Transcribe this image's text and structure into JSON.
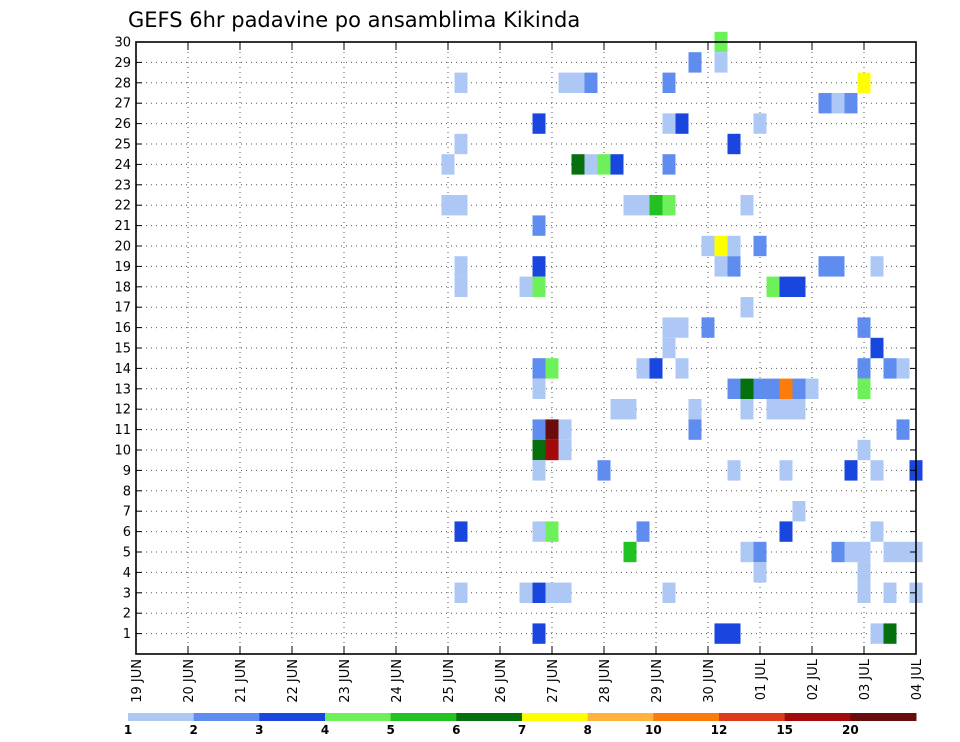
{
  "chart_data": {
    "type": "heatmap",
    "title": "GEFS 6hr padavine po ansamblima Kikinda",
    "x_tick_labels": [
      "19 JUN",
      "20 JUN",
      "21 JUN",
      "22 JUN",
      "23 JUN",
      "24 JUN",
      "25 JUN",
      "26 JUN",
      "27 JUN",
      "28 JUN",
      "29 JUN",
      "30 JUN",
      "01 JUL",
      "02 JUL",
      "03 JUL",
      "04 JUL"
    ],
    "y_tick_labels": [
      "1",
      "2",
      "3",
      "4",
      "5",
      "6",
      "7",
      "8",
      "9",
      "10",
      "11",
      "12",
      "13",
      "14",
      "15",
      "16",
      "17",
      "18",
      "19",
      "20",
      "21",
      "22",
      "23",
      "24",
      "25",
      "26",
      "27",
      "28",
      "29",
      "30"
    ],
    "xlim_days": [
      0,
      15
    ],
    "ylim_members": [
      0,
      30
    ],
    "grid": true,
    "colorbar": {
      "placement": "bottom",
      "labels": [
        "1",
        "2",
        "3",
        "4",
        "5",
        "6",
        "7",
        "8",
        "10",
        "12",
        "15",
        "20"
      ],
      "colors": [
        "#aec8f5",
        "#5f8cef",
        "#1946de",
        "#6ef05b",
        "#22c222",
        "#06700f",
        "#ffff00",
        "#ffb33a",
        "#fa7d0c",
        "#e03a1a",
        "#a30a0a",
        "#6a0c0c"
      ]
    },
    "cells": [
      {
        "day": 11.25,
        "member": 30,
        "level": 4
      },
      {
        "day": 10.75,
        "member": 29,
        "level": 2
      },
      {
        "day": 11.25,
        "member": 29,
        "level": 1
      },
      {
        "day": 6.25,
        "member": 28,
        "level": 1
      },
      {
        "day": 8.25,
        "member": 28,
        "level": 1
      },
      {
        "day": 8.5,
        "member": 28,
        "level": 1
      },
      {
        "day": 8.75,
        "member": 28,
        "level": 2
      },
      {
        "day": 10.25,
        "member": 28,
        "level": 2
      },
      {
        "day": 14.0,
        "member": 28,
        "level": 7
      },
      {
        "day": 13.25,
        "member": 27,
        "level": 2
      },
      {
        "day": 13.5,
        "member": 27,
        "level": 1
      },
      {
        "day": 13.75,
        "member": 27,
        "level": 2
      },
      {
        "day": 7.75,
        "member": 26,
        "level": 3
      },
      {
        "day": 10.25,
        "member": 26,
        "level": 1
      },
      {
        "day": 10.5,
        "member": 26,
        "level": 3
      },
      {
        "day": 12.0,
        "member": 26,
        "level": 1
      },
      {
        "day": 6.25,
        "member": 25,
        "level": 1
      },
      {
        "day": 11.5,
        "member": 25,
        "level": 3
      },
      {
        "day": 6.0,
        "member": 24,
        "level": 1
      },
      {
        "day": 8.5,
        "member": 24,
        "level": 6
      },
      {
        "day": 8.75,
        "member": 24,
        "level": 1
      },
      {
        "day": 9.0,
        "member": 24,
        "level": 4
      },
      {
        "day": 9.25,
        "member": 24,
        "level": 3
      },
      {
        "day": 10.25,
        "member": 24,
        "level": 2
      },
      {
        "day": 6.0,
        "member": 22,
        "level": 1
      },
      {
        "day": 6.25,
        "member": 22,
        "level": 1
      },
      {
        "day": 9.5,
        "member": 22,
        "level": 1
      },
      {
        "day": 9.75,
        "member": 22,
        "level": 1
      },
      {
        "day": 10.0,
        "member": 22,
        "level": 5
      },
      {
        "day": 10.25,
        "member": 22,
        "level": 4
      },
      {
        "day": 11.75,
        "member": 22,
        "level": 1
      },
      {
        "day": 7.75,
        "member": 21,
        "level": 2
      },
      {
        "day": 11.0,
        "member": 20,
        "level": 1
      },
      {
        "day": 11.25,
        "member": 20,
        "level": 7
      },
      {
        "day": 11.5,
        "member": 20,
        "level": 1
      },
      {
        "day": 12.0,
        "member": 20,
        "level": 2
      },
      {
        "day": 6.25,
        "member": 19,
        "level": 1
      },
      {
        "day": 7.75,
        "member": 19,
        "level": 3
      },
      {
        "day": 11.25,
        "member": 19,
        "level": 1
      },
      {
        "day": 11.5,
        "member": 19,
        "level": 2
      },
      {
        "day": 13.25,
        "member": 19,
        "level": 2
      },
      {
        "day": 13.5,
        "member": 19,
        "level": 2
      },
      {
        "day": 14.25,
        "member": 19,
        "level": 1
      },
      {
        "day": 6.25,
        "member": 18,
        "level": 1
      },
      {
        "day": 7.5,
        "member": 18,
        "level": 1
      },
      {
        "day": 7.75,
        "member": 18,
        "level": 4
      },
      {
        "day": 12.25,
        "member": 18,
        "level": 4
      },
      {
        "day": 12.5,
        "member": 18,
        "level": 3
      },
      {
        "day": 12.75,
        "member": 18,
        "level": 3
      },
      {
        "day": 11.75,
        "member": 17,
        "level": 1
      },
      {
        "day": 10.25,
        "member": 16,
        "level": 1
      },
      {
        "day": 10.5,
        "member": 16,
        "level": 1
      },
      {
        "day": 11.0,
        "member": 16,
        "level": 2
      },
      {
        "day": 14.0,
        "member": 16,
        "level": 2
      },
      {
        "day": 10.25,
        "member": 15,
        "level": 1
      },
      {
        "day": 14.25,
        "member": 15,
        "level": 3
      },
      {
        "day": 7.75,
        "member": 14,
        "level": 2
      },
      {
        "day": 8.0,
        "member": 14,
        "level": 4
      },
      {
        "day": 9.75,
        "member": 14,
        "level": 1
      },
      {
        "day": 10.0,
        "member": 14,
        "level": 3
      },
      {
        "day": 10.5,
        "member": 14,
        "level": 1
      },
      {
        "day": 14.0,
        "member": 14,
        "level": 2
      },
      {
        "day": 14.5,
        "member": 14,
        "level": 2
      },
      {
        "day": 14.75,
        "member": 14,
        "level": 1
      },
      {
        "day": 7.75,
        "member": 13,
        "level": 1
      },
      {
        "day": 11.5,
        "member": 13,
        "level": 2
      },
      {
        "day": 11.75,
        "member": 13,
        "level": 6
      },
      {
        "day": 12.0,
        "member": 13,
        "level": 2
      },
      {
        "day": 12.25,
        "member": 13,
        "level": 2
      },
      {
        "day": 12.5,
        "member": 13,
        "level": 9
      },
      {
        "day": 12.75,
        "member": 13,
        "level": 2
      },
      {
        "day": 13.0,
        "member": 13,
        "level": 1
      },
      {
        "day": 14.0,
        "member": 13,
        "level": 4
      },
      {
        "day": 9.25,
        "member": 12,
        "level": 1
      },
      {
        "day": 9.5,
        "member": 12,
        "level": 1
      },
      {
        "day": 10.75,
        "member": 12,
        "level": 1
      },
      {
        "day": 11.75,
        "member": 12,
        "level": 1
      },
      {
        "day": 12.25,
        "member": 12,
        "level": 1
      },
      {
        "day": 12.5,
        "member": 12,
        "level": 1
      },
      {
        "day": 12.75,
        "member": 12,
        "level": 1
      },
      {
        "day": 7.75,
        "member": 11,
        "level": 2
      },
      {
        "day": 8.0,
        "member": 11,
        "level": 12
      },
      {
        "day": 8.25,
        "member": 11,
        "level": 1
      },
      {
        "day": 10.75,
        "member": 11,
        "level": 2
      },
      {
        "day": 14.75,
        "member": 11,
        "level": 2
      },
      {
        "day": 7.75,
        "member": 10,
        "level": 6
      },
      {
        "day": 8.0,
        "member": 10,
        "level": 11
      },
      {
        "day": 8.25,
        "member": 10,
        "level": 1
      },
      {
        "day": 14.0,
        "member": 10,
        "level": 1
      },
      {
        "day": 7.75,
        "member": 9,
        "level": 1
      },
      {
        "day": 9.0,
        "member": 9,
        "level": 2
      },
      {
        "day": 11.5,
        "member": 9,
        "level": 1
      },
      {
        "day": 12.5,
        "member": 9,
        "level": 1
      },
      {
        "day": 13.75,
        "member": 9,
        "level": 3
      },
      {
        "day": 14.25,
        "member": 9,
        "level": 1
      },
      {
        "day": 15.0,
        "member": 9,
        "level": 3
      },
      {
        "day": 12.75,
        "member": 7,
        "level": 1
      },
      {
        "day": 6.25,
        "member": 6,
        "level": 3
      },
      {
        "day": 7.75,
        "member": 6,
        "level": 1
      },
      {
        "day": 8.0,
        "member": 6,
        "level": 4
      },
      {
        "day": 9.75,
        "member": 6,
        "level": 2
      },
      {
        "day": 12.5,
        "member": 6,
        "level": 3
      },
      {
        "day": 14.25,
        "member": 6,
        "level": 1
      },
      {
        "day": 9.5,
        "member": 5,
        "level": 5
      },
      {
        "day": 11.75,
        "member": 5,
        "level": 1
      },
      {
        "day": 12.0,
        "member": 5,
        "level": 2
      },
      {
        "day": 13.5,
        "member": 5,
        "level": 2
      },
      {
        "day": 13.75,
        "member": 5,
        "level": 1
      },
      {
        "day": 14.0,
        "member": 5,
        "level": 1
      },
      {
        "day": 14.5,
        "member": 5,
        "level": 1
      },
      {
        "day": 14.75,
        "member": 5,
        "level": 1
      },
      {
        "day": 15.0,
        "member": 5,
        "level": 1
      },
      {
        "day": 12.0,
        "member": 4,
        "level": 1
      },
      {
        "day": 14.0,
        "member": 4,
        "level": 1
      },
      {
        "day": 6.25,
        "member": 3,
        "level": 1
      },
      {
        "day": 7.5,
        "member": 3,
        "level": 1
      },
      {
        "day": 7.75,
        "member": 3,
        "level": 3
      },
      {
        "day": 8.0,
        "member": 3,
        "level": 1
      },
      {
        "day": 8.25,
        "member": 3,
        "level": 1
      },
      {
        "day": 10.25,
        "member": 3,
        "level": 1
      },
      {
        "day": 14.0,
        "member": 3,
        "level": 1
      },
      {
        "day": 14.5,
        "member": 3,
        "level": 1
      },
      {
        "day": 15.0,
        "member": 3,
        "level": 1
      },
      {
        "day": 7.75,
        "member": 1,
        "level": 3
      },
      {
        "day": 11.25,
        "member": 1,
        "level": 3
      },
      {
        "day": 11.5,
        "member": 1,
        "level": 3
      },
      {
        "day": 14.25,
        "member": 1,
        "level": 1
      },
      {
        "day": 14.5,
        "member": 1,
        "level": 6
      }
    ]
  }
}
